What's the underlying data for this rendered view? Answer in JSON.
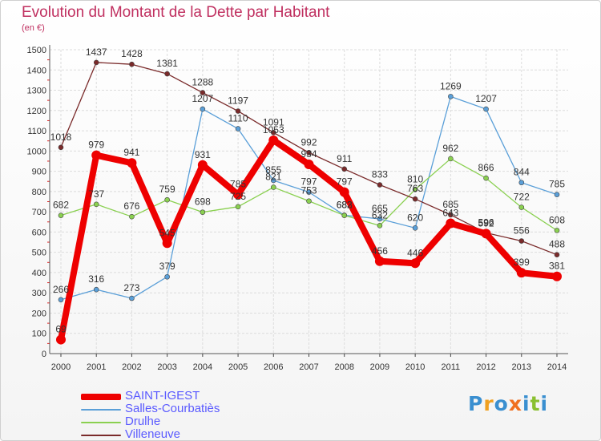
{
  "title": "Evolution du Montant de la Dette par Habitant",
  "subtitle": "(en €)",
  "logo": {
    "text": "Proxiti",
    "colors": [
      "#3a8fd0",
      "#f0a020",
      "#3a8fd0",
      "#f07020",
      "#3a8fd0",
      "#8ac030",
      "#3a8fd0"
    ]
  },
  "chart_data": {
    "type": "line",
    "x": [
      "2000",
      "2001",
      "2002",
      "2003",
      "2004",
      "2005",
      "2006",
      "2007",
      "2008",
      "2009",
      "2010",
      "2011",
      "2012",
      "2013",
      "2014"
    ],
    "ylim": [
      0,
      1500
    ],
    "yticks": [
      0,
      100,
      200,
      300,
      400,
      500,
      600,
      700,
      800,
      900,
      1000,
      1100,
      1200,
      1300,
      1400,
      1500
    ],
    "grid": true,
    "legend_position": "bottom-left",
    "series": [
      {
        "name": "SAINT-IGEST",
        "color": "#ee0000",
        "values": [
          69,
          979,
          941,
          545,
          931,
          785,
          1053,
          934,
          797,
          456,
          446,
          643,
          592,
          399,
          381
        ]
      },
      {
        "name": "Salles-Courbatiès",
        "color": "#5a9fd8",
        "values": [
          266,
          316,
          273,
          379,
          1207,
          1110,
          855,
          797,
          683,
          665,
          620,
          1269,
          1207,
          844,
          785
        ]
      },
      {
        "name": "Drulhe",
        "color": "#8ad050",
        "values": [
          682,
          737,
          676,
          759,
          698,
          725,
          821,
          753,
          682,
          632,
          810,
          962,
          866,
          722,
          608
        ]
      },
      {
        "name": "Villeneuve",
        "color": "#7a2a2a",
        "values": [
          1018,
          1437,
          1428,
          1381,
          1288,
          1197,
          1091,
          992,
          911,
          833,
          763,
          685,
          596,
          556,
          488
        ]
      }
    ]
  }
}
